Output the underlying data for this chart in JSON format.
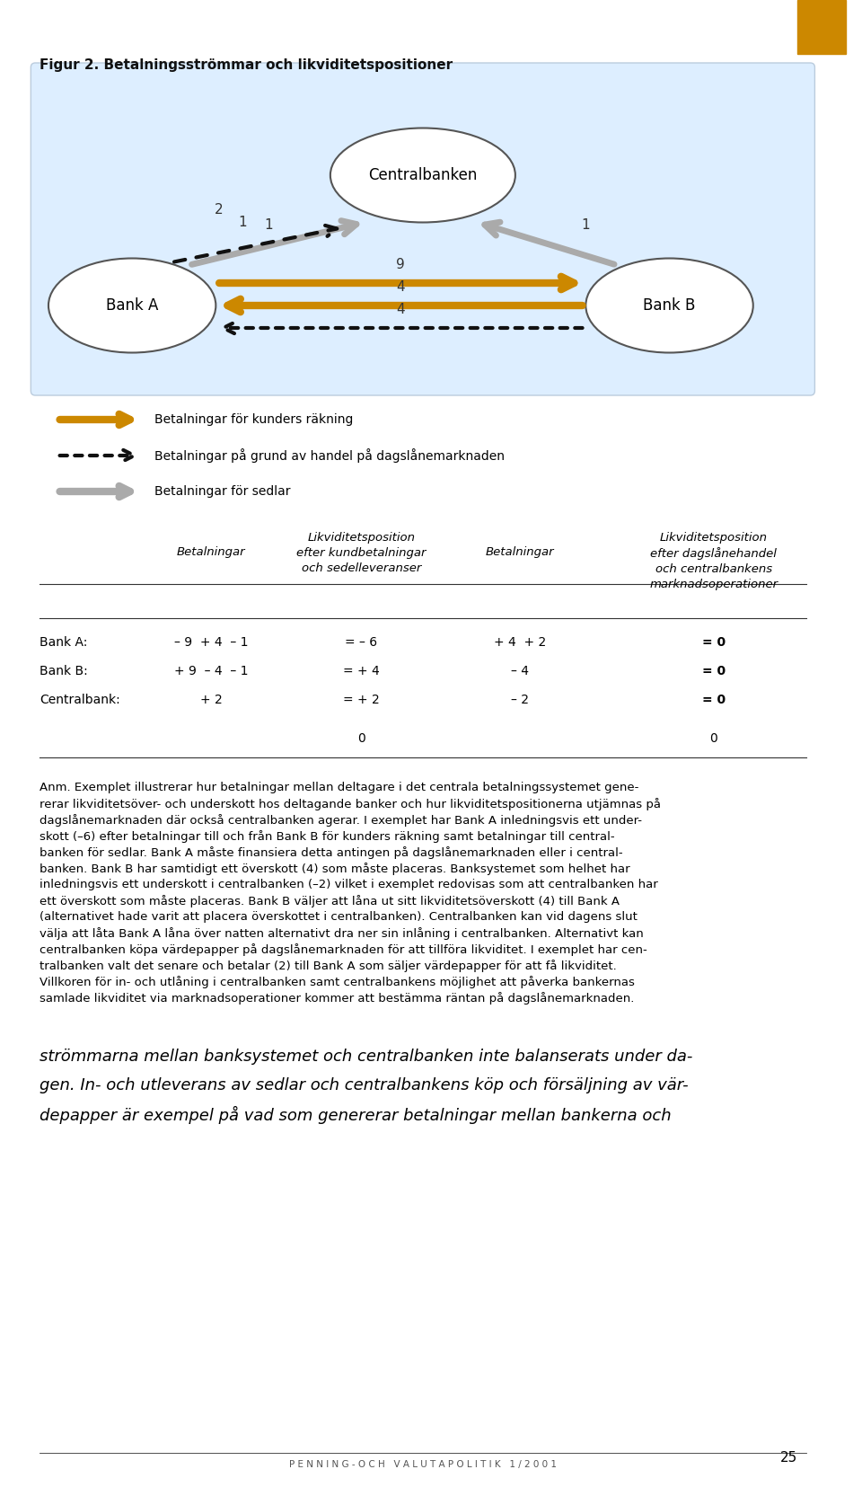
{
  "title": "Figur 2. Betalningsströmmar och likviditetspositioner",
  "bg_box_color": "#ddeeff",
  "bg_page_color": "#ffffff",
  "orange_color": "#cc8800",
  "gray_arrow_color": "#aaaaaa",
  "black_color": "#111111",
  "row_labels": [
    "Bank A:",
    "Bank B:",
    "Centralbank:"
  ],
  "col1_vals": [
    "– 9  + 4  – 1",
    "+ 9  – 4  – 1",
    "+ 2"
  ],
  "col2_vals": [
    "= – 6",
    "= + 4",
    "= + 2"
  ],
  "col3_vals": [
    "+ 4  + 2",
    "– 4",
    "– 2"
  ],
  "col4_vals": [
    "= 0",
    "= 0",
    "= 0"
  ],
  "sum_col2": "0",
  "sum_col4": "0",
  "legend_label1": "Betalningar för kunders räkning",
  "legend_label2": "Betalningar på grund av handel på dagslånemarknaden",
  "legend_label3": "Betalningar för sedlar",
  "anm_text": "Anm. Exemplet illustrerar hur betalningar mellan deltagare i det centrala betalningssystemet genererar likviditetsöver- och underskott hos deltagande banker och hur likviditetspositionerna utjämnas på dagslånemarknaden där också centralbanken agerar. I exemplet har Bank A inledningsvis ett underskott (–6) efter betalningar till och från Bank B för kunders räkning samt betalningar till centralbanken för sedlar. Bank A måste finansiera detta antingen på dagslånemarknaden eller i centralbanken. Bank B har samtidigt ett överskott (4) som måste placeras. Banksystemet som helhet har inledningsvis ett underskott i centralbanken (–2) vilket i exemplet redovisas som att centralbanken har ett överskott som måste placeras. Bank B väljer att låna ut sitt likviditetsöverskott (4) till Bank A (alternativet hade varit att placera överskottet i centralbanken). Centralbanken kan vid dagens slut välja att låta Bank A låna över natten alternativt dra ner sin inlåning i centralbanken. Alternativt kan centralbanken köpa värdepapper på dagslånemarknaden för att tillföra likviditet. I exemplet har centralbanken valt det senare och betalar (2) till Bank A som säljer värdepapper för att få likviditet. Villkoren för in- och utlåning i centralbanken samt centralbankens möjlighet att påverka bankernas samlade likviditet via marknadsoperationer kommer att bestämma räntan på dagslånemarknaden.",
  "bottom_text": "strömmarna mellan banksystemet och centralbanken inte balanserats under da-\ngen. In- och utleverans av sedlar och centralbankens köp och försäljning av vär-\ndepapper är exempel på vad som genererar betalningar mellan bankerna och",
  "page_num": "25",
  "footer_text": "P E N N I N G - O C H   V A L U T A P O L I T I K   1 / 2 0 0 1"
}
